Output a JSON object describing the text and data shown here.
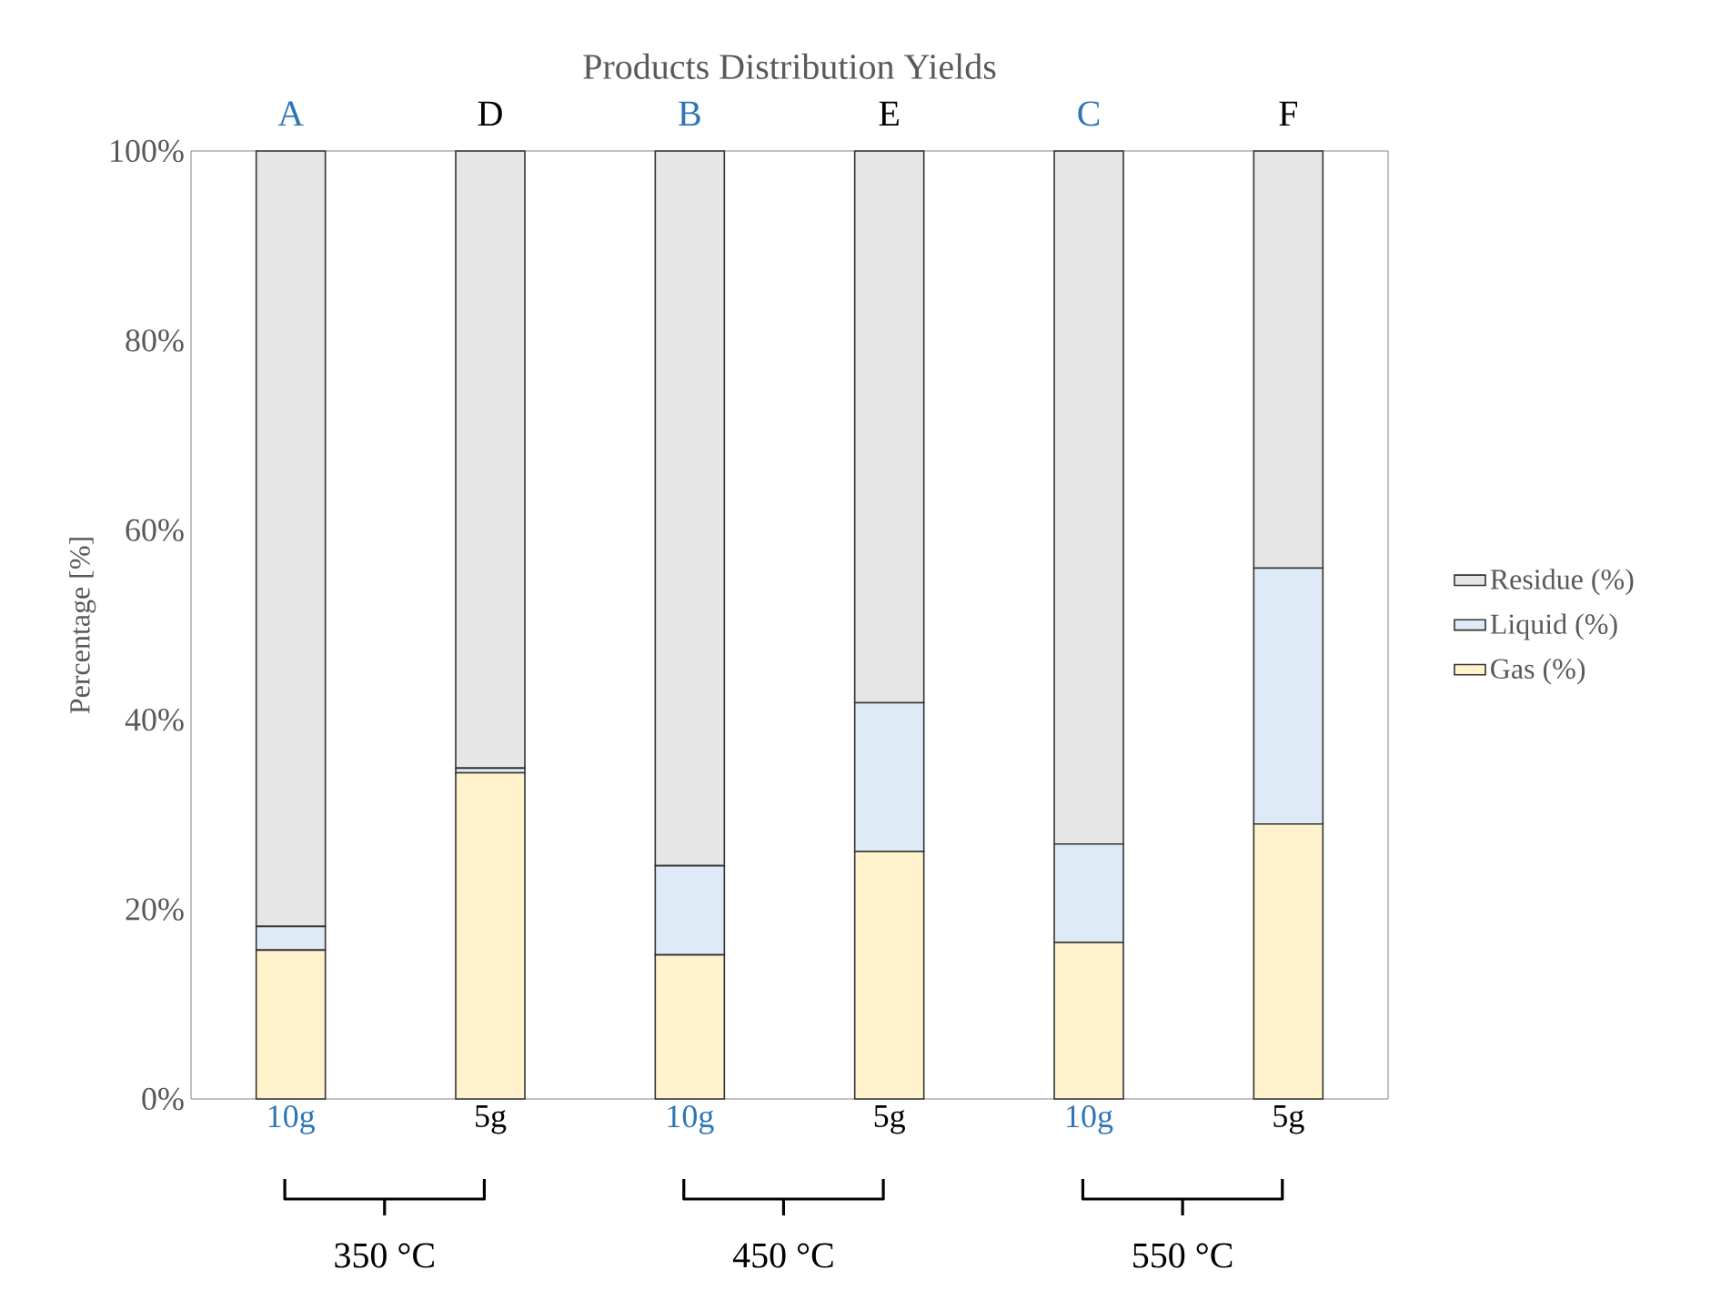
{
  "chart_data": {
    "type": "bar",
    "stacked": true,
    "title": "Products Distribution Yields",
    "ylabel": "Percentage [%]",
    "categories": [
      "10g",
      "5g",
      "10g",
      "5g",
      "10g",
      "5g"
    ],
    "series": [
      {
        "name": "Gas  (%)",
        "color": "#fff2cc",
        "values": [
          15.7,
          34.4,
          15.2,
          26.1,
          16.5,
          29.0
        ]
      },
      {
        "name": "Liquid (%)",
        "color": "#deebf7",
        "values": [
          2.5,
          0.5,
          9.4,
          15.7,
          10.4,
          27.0
        ]
      },
      {
        "name": "Residue (%)",
        "color": "#e7e6e6",
        "values": [
          81.8,
          65.1,
          75.4,
          58.2,
          73.1,
          44.0
        ]
      }
    ],
    "ylim": [
      0,
      100
    ],
    "yticks": [
      {
        "value": 0,
        "label": "0%"
      },
      {
        "value": 20,
        "label": "20%"
      },
      {
        "value": 40,
        "label": "40%"
      },
      {
        "value": 60,
        "label": "60%"
      },
      {
        "value": 80,
        "label": "80%"
      },
      {
        "value": 100,
        "label": "100%"
      }
    ],
    "annotations": [
      "A",
      "D",
      "B",
      "E",
      "C",
      "F",
      "350 °C",
      "450 °C",
      "550 °C"
    ],
    "legend": "right",
    "grid": false
  }
}
